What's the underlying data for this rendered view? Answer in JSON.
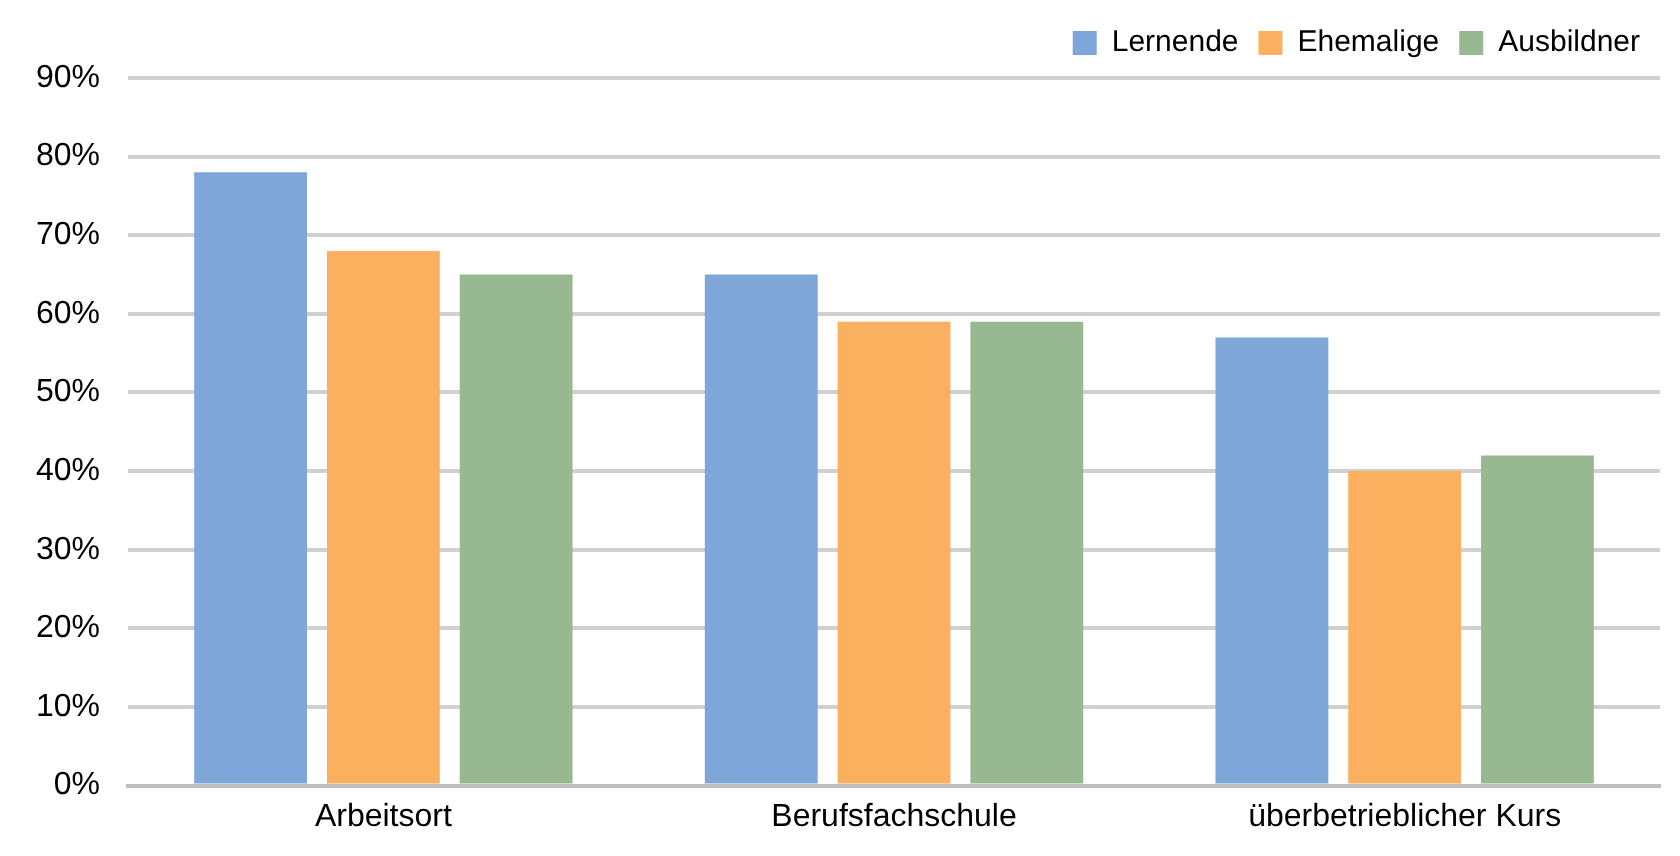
{
  "chart_data": {
    "type": "bar",
    "categories": [
      "Arbeitsort",
      "Berufsfachschule",
      "überbetrieblicher Kurs"
    ],
    "series": [
      {
        "name": "Lernende",
        "color": "#7ea6d8",
        "values": [
          78,
          65,
          57
        ]
      },
      {
        "name": "Ehemalige",
        "color": "#fbb060",
        "values": [
          68,
          59,
          40
        ]
      },
      {
        "name": "Ausbildner",
        "color": "#97b890",
        "values": [
          65,
          59,
          42
        ]
      }
    ],
    "ylim": [
      0,
      90
    ],
    "yticks": [
      {
        "value": 0,
        "label": "0%"
      },
      {
        "value": 10,
        "label": "10%"
      },
      {
        "value": 20,
        "label": "20%"
      },
      {
        "value": 30,
        "label": "30%"
      },
      {
        "value": 40,
        "label": "40%"
      },
      {
        "value": 50,
        "label": "50%"
      },
      {
        "value": 60,
        "label": "60%"
      },
      {
        "value": 70,
        "label": "70%"
      },
      {
        "value": 80,
        "label": "80%"
      },
      {
        "value": 90,
        "label": "90%"
      }
    ],
    "grid": "y",
    "legend": "top right"
  }
}
